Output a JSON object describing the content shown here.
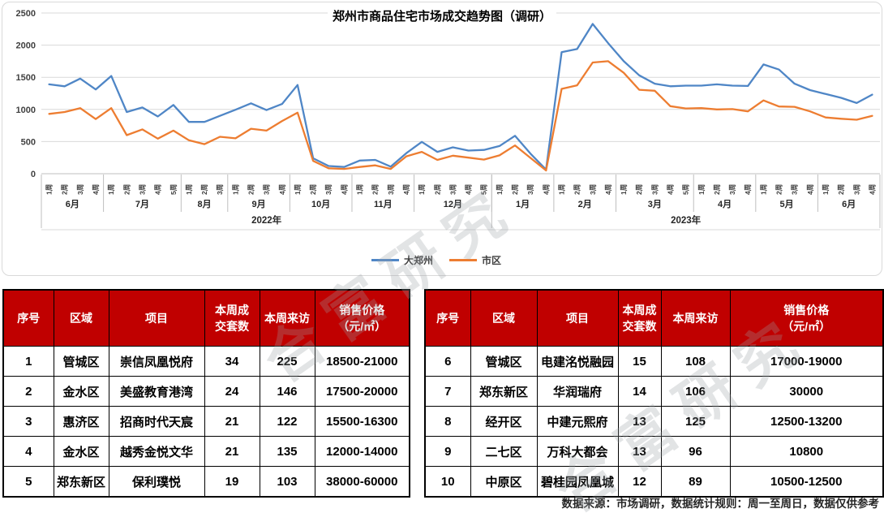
{
  "chart_data": {
    "type": "line",
    "title": "郑州市商品住宅市场成交趋势图（调研）",
    "ylabel": "",
    "xlabel": "",
    "ylim": [
      0,
      2500
    ],
    "y_ticks": [
      0,
      500,
      1000,
      1500,
      2000,
      2500
    ],
    "grid": true,
    "legend_position": "bottom",
    "week_suffix": "周",
    "years": [
      {
        "label": "2022年",
        "months": [
          {
            "label": "6月",
            "weeks": 4
          },
          {
            "label": "7月",
            "weeks": 5
          },
          {
            "label": "8月",
            "weeks": 3
          },
          {
            "label": "9月",
            "weeks": 4
          },
          {
            "label": "10月",
            "weeks": 4
          },
          {
            "label": "11月",
            "weeks": 4
          },
          {
            "label": "12月",
            "weeks": 5
          }
        ]
      },
      {
        "label": "2023年",
        "months": [
          {
            "label": "1月",
            "weeks": 4
          },
          {
            "label": "2月",
            "weeks": 4
          },
          {
            "label": "3月",
            "weeks": 5
          },
          {
            "label": "4月",
            "weeks": 4
          },
          {
            "label": "5月",
            "weeks": 4
          },
          {
            "label": "6月",
            "weeks": 4
          }
        ]
      }
    ],
    "series": [
      {
        "name": "大郑州",
        "color": "#4f86c6",
        "values": [
          1390,
          1360,
          1480,
          1310,
          1520,
          960,
          1030,
          890,
          1070,
          805,
          805,
          900,
          995,
          1095,
          990,
          1085,
          1380,
          240,
          120,
          105,
          205,
          215,
          110,
          320,
          495,
          340,
          410,
          360,
          370,
          430,
          590,
          310,
          65,
          1890,
          1940,
          2330,
          2030,
          1750,
          1530,
          1400,
          1360,
          1370,
          1370,
          1390,
          1370,
          1365,
          1700,
          1620,
          1400,
          1300,
          1240,
          1180,
          1100,
          1230
        ]
      },
      {
        "name": "市区",
        "color": "#ed7d31",
        "values": [
          930,
          960,
          1020,
          850,
          1020,
          600,
          690,
          545,
          670,
          520,
          460,
          575,
          550,
          700,
          670,
          820,
          950,
          200,
          85,
          75,
          105,
          130,
          75,
          270,
          340,
          215,
          280,
          250,
          220,
          285,
          440,
          245,
          50,
          1320,
          1375,
          1730,
          1750,
          1570,
          1305,
          1290,
          1050,
          1015,
          1020,
          1000,
          1005,
          970,
          1140,
          1045,
          1040,
          970,
          875,
          855,
          840,
          900
        ]
      }
    ]
  },
  "tables": {
    "headers": [
      "序号",
      "区域",
      "项目",
      "本周成\n交套数",
      "本周来访",
      "销售价格\n（元/㎡）"
    ],
    "left": {
      "rows": [
        [
          "1",
          "管城区",
          "崇信凤凰悦府",
          "34",
          "225",
          "18500-21000"
        ],
        [
          "2",
          "金水区",
          "美盛教育港湾",
          "24",
          "146",
          "17500-20000"
        ],
        [
          "3",
          "惠济区",
          "招商时代天宸",
          "21",
          "122",
          "15500-16300"
        ],
        [
          "4",
          "金水区",
          "越秀金悦文华",
          "21",
          "135",
          "12000-14000"
        ],
        [
          "5",
          "郑东新区",
          "保利璞悦",
          "19",
          "103",
          "38000-60000"
        ]
      ]
    },
    "right": {
      "rows": [
        [
          "6",
          "管城区",
          "电建洺悦融园",
          "15",
          "108",
          "17000-19000"
        ],
        [
          "7",
          "郑东新区",
          "华润瑞府",
          "14",
          "106",
          "30000"
        ],
        [
          "8",
          "经开区",
          "中建元熙府",
          "13",
          "125",
          "12500-13200"
        ],
        [
          "9",
          "二七区",
          "万科大都会",
          "13",
          "96",
          "10800"
        ],
        [
          "10",
          "中原区",
          "碧桂园凤凰城",
          "12",
          "89",
          "10500-12500"
        ]
      ]
    }
  },
  "footer": {
    "text": "数据来源：市场调研，数据统计规则：周一至周日，数据仅供参考"
  },
  "watermark": {
    "text": "合富研究",
    "color": "#9aa0a6"
  }
}
